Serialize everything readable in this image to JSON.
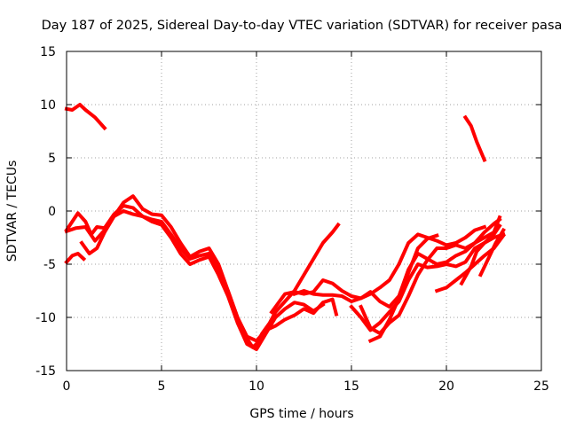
{
  "chart_data": {
    "type": "line",
    "title": "Day 187 of 2025, Sidereal Day-to-day VTEC variation (SDTVAR) for receiver pasa",
    "xlabel": "GPS time / hours",
    "ylabel": "SDTVAR / TECUs",
    "xlim": [
      0,
      25
    ],
    "ylim": [
      -15,
      15
    ],
    "xticks": [
      0,
      5,
      10,
      15,
      20,
      25
    ],
    "yticks": [
      -15,
      -10,
      -5,
      0,
      5,
      10,
      15
    ],
    "xtick_labels": [
      "0",
      "5",
      "10",
      "15",
      "20",
      "25"
    ],
    "ytick_labels": [
      "-15",
      "-10",
      "-5",
      "0",
      "5",
      "10",
      "15"
    ],
    "grid": true,
    "legend": "none",
    "series_color": "#ff0000",
    "series": [
      {
        "name": "track-1",
        "x": [
          0.0,
          0.3,
          0.7,
          1.0,
          1.5,
          2.0
        ],
        "y": [
          9.6,
          9.5,
          10.0,
          9.5,
          8.8,
          7.8
        ]
      },
      {
        "name": "track-2",
        "x": [
          0.0,
          0.3,
          0.6,
          0.9
        ],
        "y": [
          -4.8,
          -4.2,
          -4.0,
          -4.5
        ]
      },
      {
        "name": "track-3",
        "x": [
          0.0,
          0.3,
          0.6,
          1.0,
          1.3,
          1.6,
          2.0,
          2.5,
          3.0,
          3.5,
          4.0,
          4.5,
          5.0,
          5.5,
          6.0,
          6.5,
          7.0,
          7.5,
          8.0,
          8.5,
          9.0,
          9.5,
          9.8,
          10.0,
          10.3,
          10.7,
          11.0,
          11.5,
          12.0,
          12.5,
          13.0,
          13.5,
          14.0,
          14.3
        ],
        "y": [
          -1.8,
          -1.0,
          -0.2,
          -1.0,
          -2.2,
          -1.5,
          -1.6,
          -0.3,
          0.5,
          0.3,
          -0.5,
          -0.8,
          -1.0,
          -2.2,
          -3.5,
          -4.5,
          -4.2,
          -4.0,
          -5.5,
          -7.5,
          -10.0,
          -12.0,
          -12.8,
          -12.5,
          -11.5,
          -10.5,
          -9.5,
          -8.5,
          -7.5,
          -6.0,
          -4.5,
          -3.0,
          -2.0,
          -1.3
        ]
      },
      {
        "name": "track-4",
        "x": [
          0.0,
          0.5,
          1.0,
          1.5,
          2.0,
          2.5,
          3.0,
          3.5,
          4.0,
          4.5,
          5.0,
          5.5,
          6.0,
          6.5,
          7.0,
          7.5,
          8.0,
          8.5,
          9.0,
          9.5,
          10.0,
          10.5,
          11.0,
          11.5,
          12.0,
          12.5,
          13.0,
          13.5
        ],
        "y": [
          -1.9,
          -1.6,
          -1.5,
          -2.8,
          -1.8,
          -0.5,
          0.0,
          -0.3,
          -0.5,
          -1.0,
          -1.3,
          -2.5,
          -4.0,
          -5.0,
          -4.6,
          -4.3,
          -6.0,
          -8.0,
          -10.5,
          -12.5,
          -13.0,
          -11.5,
          -10.0,
          -9.2,
          -8.6,
          -8.8,
          -9.4,
          -8.8
        ]
      },
      {
        "name": "track-5",
        "x": [
          0.8,
          1.2,
          1.6,
          2.0,
          2.5,
          3.0,
          3.5,
          4.0,
          4.5,
          5.0,
          5.5,
          6.0,
          6.5,
          7.0,
          7.5,
          8.0,
          8.5,
          9.0,
          9.5,
          10.0,
          10.5,
          11.0,
          11.5,
          12.0,
          12.5,
          13.0,
          13.5,
          14.0,
          14.2
        ],
        "y": [
          -3.0,
          -4.0,
          -3.5,
          -2.0,
          -0.5,
          0.8,
          1.4,
          0.2,
          -0.3,
          -0.4,
          -1.5,
          -3.0,
          -4.3,
          -3.8,
          -3.5,
          -5.0,
          -7.5,
          -10.0,
          -11.8,
          -12.2,
          -11.2,
          -10.8,
          -10.2,
          -9.8,
          -9.2,
          -9.6,
          -8.6,
          -8.3,
          -9.7
        ]
      },
      {
        "name": "track-6",
        "x": [
          10.8,
          11.5,
          12.0,
          12.5,
          13.0,
          13.5,
          14.0,
          14.5,
          15.0,
          15.5,
          16.0,
          16.5,
          17.0,
          17.5,
          18.0,
          18.5,
          19.0,
          19.5,
          20.0,
          20.5,
          21.0,
          21.5,
          22.0
        ],
        "y": [
          -9.5,
          -7.8,
          -7.6,
          -7.8,
          -7.6,
          -6.5,
          -6.8,
          -7.5,
          -8.0,
          -8.2,
          -7.8,
          -7.2,
          -6.5,
          -5.0,
          -3.0,
          -2.2,
          -2.5,
          -2.8,
          -3.2,
          -3.0,
          -2.5,
          -1.8,
          -1.5
        ]
      },
      {
        "name": "track-7",
        "x": [
          12.0,
          12.5,
          13.0,
          13.5,
          14.0,
          14.5,
          15.0,
          15.5,
          16.0,
          16.5,
          17.0,
          17.5,
          18.0,
          18.5,
          19.0,
          19.5,
          20.0,
          20.5,
          21.0,
          21.5,
          22.0,
          22.5,
          22.8
        ],
        "y": [
          -7.8,
          -7.5,
          -7.8,
          -7.9,
          -7.9,
          -8.0,
          -8.5,
          -8.2,
          -7.6,
          -8.5,
          -9.0,
          -8.0,
          -5.5,
          -4.0,
          -4.5,
          -5.0,
          -4.8,
          -4.2,
          -3.8,
          -3.0,
          -2.5,
          -2.0,
          -0.6
        ]
      },
      {
        "name": "track-8",
        "x": [
          15.0,
          15.5,
          16.0,
          16.5,
          17.0,
          17.5,
          18.0,
          18.5,
          19.0,
          19.5,
          20.0,
          20.5,
          21.0,
          21.5,
          22.0,
          22.5,
          23.0
        ],
        "y": [
          -9.0,
          -10.0,
          -11.2,
          -10.5,
          -9.5,
          -8.5,
          -6.5,
          -5.0,
          -5.3,
          -5.2,
          -5.0,
          -5.2,
          -4.8,
          -3.5,
          -3.0,
          -2.5,
          -2.2
        ]
      },
      {
        "name": "track-9",
        "x": [
          15.5,
          16.0,
          16.5,
          17.0,
          17.5,
          18.0,
          18.5,
          19.0,
          19.5,
          20.0,
          20.5,
          21.0,
          21.5,
          22.0,
          22.5,
          22.8
        ],
        "y": [
          -9.0,
          -11.0,
          -11.5,
          -10.5,
          -9.8,
          -8.0,
          -6.0,
          -4.6,
          -3.5,
          -3.5,
          -3.2,
          -3.5,
          -3.0,
          -2.0,
          -1.2,
          -0.8
        ]
      },
      {
        "name": "track-10",
        "x": [
          16.0,
          16.5,
          17.0,
          17.5,
          18.0,
          18.5,
          19.0,
          19.5
        ],
        "y": [
          -12.2,
          -11.8,
          -10.2,
          -8.2,
          -5.8,
          -3.5,
          -2.6,
          -2.3
        ]
      },
      {
        "name": "track-11",
        "x": [
          19.5,
          20.0,
          20.5,
          21.0,
          21.5,
          22.0,
          22.5,
          23.0
        ],
        "y": [
          -7.5,
          -7.2,
          -6.5,
          -5.8,
          -5.0,
          -4.2,
          -3.5,
          -2.3
        ]
      },
      {
        "name": "track-12",
        "x": [
          20.8,
          21.3,
          21.6,
          22.0,
          22.5,
          22.8
        ],
        "y": [
          -6.8,
          -5.2,
          -3.8,
          -3.0,
          -2.2,
          -1.4
        ]
      },
      {
        "name": "track-13",
        "x": [
          21.0,
          21.3,
          21.6,
          22.0
        ],
        "y": [
          8.8,
          8.0,
          6.5,
          4.8
        ]
      },
      {
        "name": "track-14",
        "x": [
          21.8,
          22.2,
          22.6,
          23.0
        ],
        "y": [
          -6.0,
          -4.5,
          -3.0,
          -1.8
        ]
      }
    ]
  }
}
